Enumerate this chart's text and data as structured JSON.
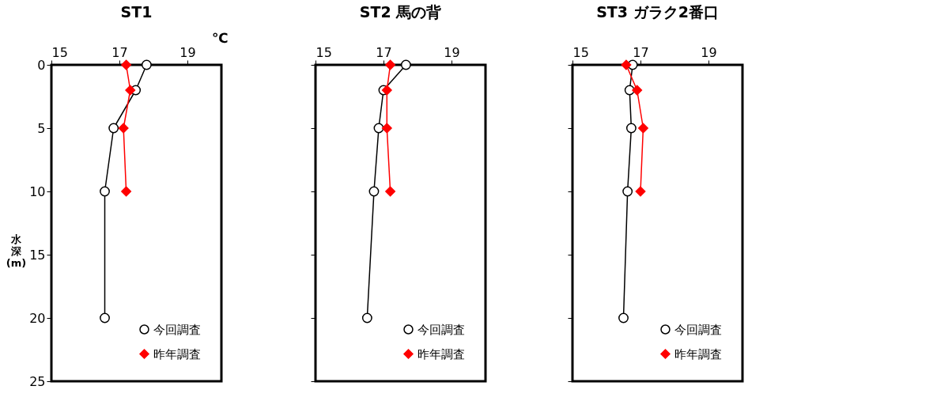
{
  "chart_data": [
    {
      "type": "line",
      "title": "ST1",
      "xlabel": "℃",
      "ylabel": "水深(m)",
      "xlim": [
        15,
        20
      ],
      "xticks": [
        15,
        17,
        19
      ],
      "ylim": [
        25,
        0
      ],
      "yticks": [
        0,
        5,
        10,
        15,
        20,
        25
      ],
      "grid": false,
      "legend": "bottom right",
      "series": [
        {
          "name": "今回調査",
          "color": "#000000",
          "marker": "circle",
          "x": [
            17.8,
            17.48,
            16.83,
            16.57,
            16.57
          ],
          "values": [
            0,
            2,
            5,
            10,
            20
          ]
        },
        {
          "name": "昨年調査",
          "color": "#ff0000",
          "marker": "diamond",
          "x": [
            17.2,
            17.32,
            17.12,
            17.2
          ],
          "values": [
            0,
            2,
            5,
            10
          ]
        }
      ]
    },
    {
      "type": "line",
      "title": "ST2  馬の背",
      "xlim": [
        15,
        20
      ],
      "xticks": [
        15,
        17,
        19
      ],
      "ylim": [
        25,
        0
      ],
      "yticks": [
        0,
        5,
        10,
        15,
        20,
        25
      ],
      "tick_labels": "x",
      "grid": false,
      "legend": "bottom right",
      "series": [
        {
          "name": "今回調査",
          "color": "#000000",
          "marker": "circle",
          "x": [
            17.66,
            17.0,
            16.86,
            16.72,
            16.52
          ],
          "values": [
            0,
            2,
            5,
            10,
            20
          ]
        },
        {
          "name": "昨年調査",
          "color": "#ff0000",
          "marker": "diamond",
          "x": [
            17.2,
            17.1,
            17.1,
            17.2
          ],
          "values": [
            0,
            2,
            5,
            10
          ]
        }
      ]
    },
    {
      "type": "line",
      "title": "ST3  ガラク2番口",
      "xlim": [
        15,
        20
      ],
      "xticks": [
        15,
        17,
        19
      ],
      "ylim": [
        25,
        0
      ],
      "yticks": [
        0,
        5,
        10,
        15,
        20,
        25
      ],
      "tick_labels": "x",
      "grid": false,
      "legend": "bottom right",
      "series": [
        {
          "name": "今回調査",
          "color": "#000000",
          "marker": "circle",
          "x": [
            16.77,
            16.68,
            16.73,
            16.62,
            16.5
          ],
          "values": [
            0,
            2,
            5,
            10,
            20
          ]
        },
        {
          "name": "昨年調査",
          "color": "#ff0000",
          "marker": "diamond",
          "x": [
            16.58,
            16.9,
            17.08,
            17.0
          ],
          "values": [
            0,
            2,
            5,
            10
          ]
        }
      ]
    }
  ]
}
